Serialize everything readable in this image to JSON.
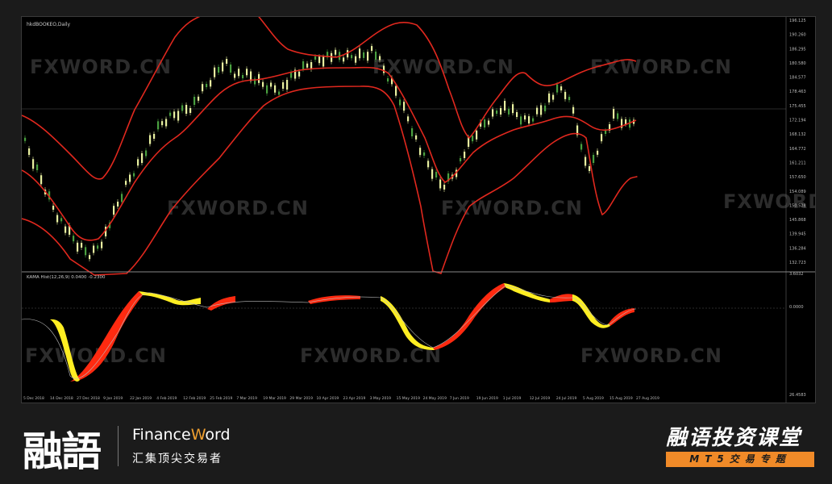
{
  "chart_window": {
    "symbol_label": "hkdBOOKEO,Daily",
    "indicator_label": "KAMA Hist(12,26,9) 0.0400 -0.2300",
    "price_axis_ticks": [
      "196.125",
      "190.260",
      "186.295",
      "180.580",
      "184.577",
      "178.463",
      "175.455",
      "172.194",
      "168.132",
      "164.772",
      "161.211",
      "157.650",
      "154.089",
      "150.528",
      "145.868",
      "139.945",
      "136.284",
      "132.723"
    ],
    "indicator_axis_ticks": [
      "3.6032",
      "0.0000",
      "26.4583"
    ],
    "date_axis_ticks": [
      "5 Dec 2018",
      "14 Dec 2018",
      "27 Dec 2018",
      "9 Jan 2019",
      "22 Jan 2019",
      "4 Feb 2019",
      "12 Feb 2019",
      "25 Feb 2019",
      "7 Mar 2019",
      "19 Mar 2019",
      "29 Mar 2019",
      "10 Apr 2019",
      "23 Apr 2019",
      "3 May 2019",
      "15 May 2019",
      "24 May 2019",
      "7 Jun 2019",
      "19 Jun 2019",
      "1 Jul 2019",
      "12 Jul 2019",
      "24 Jul 2019",
      "5 Aug 2019",
      "15 Aug 2019",
      "27 Aug 2019"
    ],
    "watermark": "FXWORD.CN",
    "colors": {
      "background": "#000000",
      "bands": "#e0281e",
      "bull_candle": "#e8f0a0",
      "bear_candle": "#4aa040",
      "hist_up": "#ff2a10",
      "hist_down": "#ffee22"
    }
  },
  "footer": {
    "logo_text": "融語",
    "brand_name_prefix": "Finance",
    "brand_name_o": "W",
    "brand_name_suffix": "ord",
    "brand_slogan": "汇集顶尖交易者",
    "course_title": "融语投资课堂",
    "course_tag": "MT5交易专题"
  }
}
